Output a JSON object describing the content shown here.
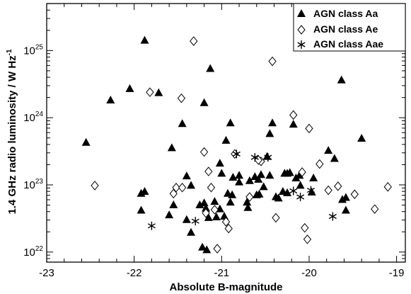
{
  "chart_data": {
    "type": "scatter",
    "xlabel": "Absolute B-magnitude",
    "ylabel": "1.4 GHz radio luminosity / W Hz",
    "ylabel_superscript": "-1",
    "xlim": [
      -23,
      -18.9
    ],
    "ylim_log10": [
      21.85,
      25.7
    ],
    "y_scale": "log",
    "x_ticks": [
      -23,
      -22,
      -21,
      -20,
      -19
    ],
    "y_ticks": [
      {
        "value": 22,
        "mantissa": "10",
        "exponent": "22"
      },
      {
        "value": 23,
        "mantissa": "10",
        "exponent": "23"
      },
      {
        "value": 24,
        "mantissa": "10",
        "exponent": "24"
      },
      {
        "value": 25,
        "mantissa": "10",
        "exponent": "25"
      }
    ],
    "legend_position": "top-right",
    "grid": false,
    "series": [
      {
        "name": "AGN class Aa",
        "marker": "filled-triangle",
        "points": [
          [
            -22.55,
            23.63
          ],
          [
            -22.27,
            24.26
          ],
          [
            -22.05,
            24.43
          ],
          [
            -21.88,
            25.15
          ],
          [
            -21.72,
            24.37
          ],
          [
            -21.92,
            22.87
          ],
          [
            -21.88,
            22.9
          ],
          [
            -21.92,
            22.62
          ],
          [
            -21.57,
            23.55
          ],
          [
            -21.45,
            23.91
          ],
          [
            -21.4,
            23.13
          ],
          [
            -21.4,
            22.48
          ],
          [
            -21.35,
            22.99
          ],
          [
            -21.35,
            22.29
          ],
          [
            -21.18,
            22.65
          ],
          [
            -21.2,
            22.73
          ],
          [
            -21.25,
            22.7
          ],
          [
            -21.2,
            24.22
          ],
          [
            -21.13,
            24.73
          ],
          [
            -21.15,
            22.51
          ],
          [
            -21.08,
            22.75
          ],
          [
            -21.02,
            23.32
          ],
          [
            -20.95,
            23.66
          ],
          [
            -21.02,
            22.64
          ],
          [
            -20.93,
            22.87
          ],
          [
            -20.9,
            22.74
          ],
          [
            -20.87,
            23.11
          ],
          [
            -20.8,
            23.14
          ],
          [
            -20.8,
            23.04
          ],
          [
            -20.71,
            22.74
          ],
          [
            -20.68,
            23.06
          ],
          [
            -20.62,
            23.12
          ],
          [
            -20.58,
            23.08
          ],
          [
            -20.55,
            23.15
          ],
          [
            -20.48,
            23.42
          ],
          [
            -20.45,
            23.76
          ],
          [
            -20.42,
            23.92
          ],
          [
            -20.38,
            22.82
          ],
          [
            -20.28,
            23.17
          ],
          [
            -20.25,
            22.88
          ],
          [
            -20.25,
            23.17
          ],
          [
            -20.18,
            23.9
          ],
          [
            -20.11,
            23.14
          ],
          [
            -20.1,
            22.99
          ],
          [
            -19.95,
            23.1
          ],
          [
            -19.78,
            23.51
          ],
          [
            -19.71,
            23.39
          ],
          [
            -19.63,
            24.56
          ],
          [
            -19.58,
            22.81
          ],
          [
            -19.58,
            22.62
          ],
          [
            -19.4,
            23.69
          ],
          [
            -21.22,
            22.07
          ],
          [
            -21.17,
            22.03
          ],
          [
            -21.06,
            22.52
          ],
          [
            -20.97,
            22.53
          ],
          [
            -20.88,
            22.85
          ],
          [
            -20.7,
            22.66
          ],
          [
            -20.57,
            22.86
          ],
          [
            -20.45,
            23.14
          ],
          [
            -20.3,
            22.9
          ],
          [
            -20.22,
            23.18
          ],
          [
            -19.97,
            22.89
          ],
          [
            -21.55,
            22.7
          ],
          [
            -21.6,
            22.55
          ],
          [
            -20.9,
            23.92
          ],
          [
            -20.52,
            22.97
          ],
          [
            -21.0,
            23.17
          ],
          [
            -20.6,
            22.85
          ],
          [
            -20.35,
            22.8
          ],
          [
            -19.62,
            22.78
          ],
          [
            -20.15,
            23.1
          ]
        ]
      },
      {
        "name": "AGN class Ae",
        "marker": "open-diamond",
        "points": [
          [
            -22.45,
            22.99
          ],
          [
            -21.82,
            24.38
          ],
          [
            -21.52,
            22.96
          ],
          [
            -21.55,
            22.87
          ],
          [
            -21.46,
            24.29
          ],
          [
            -21.32,
            25.14
          ],
          [
            -21.2,
            23.49
          ],
          [
            -21.15,
            23.2
          ],
          [
            -21.12,
            22.96
          ],
          [
            -21.08,
            22.63
          ],
          [
            -21.05,
            22.05
          ],
          [
            -20.92,
            22.35
          ],
          [
            -20.85,
            23.46
          ],
          [
            -20.68,
            22.82
          ],
          [
            -20.55,
            23.35
          ],
          [
            -20.42,
            24.84
          ],
          [
            -20.38,
            22.51
          ],
          [
            -20.18,
            24.04
          ],
          [
            -20.08,
            23.19
          ],
          [
            -20.05,
            22.36
          ],
          [
            -20.02,
            22.19
          ],
          [
            -20.0,
            23.84
          ],
          [
            -19.88,
            23.31
          ],
          [
            -19.78,
            22.92
          ],
          [
            -19.67,
            22.98
          ],
          [
            -19.48,
            22.86
          ],
          [
            -19.25,
            22.64
          ],
          [
            -19.1,
            22.97
          ],
          [
            -20.58,
            23.37
          ],
          [
            -21.45,
            22.96
          ],
          [
            -21.18,
            22.58
          ],
          [
            -20.95,
            22.45
          ]
        ]
      },
      {
        "name": "AGN class Aae",
        "marker": "asterisk",
        "points": [
          [
            -21.8,
            22.39
          ],
          [
            -21.3,
            22.46
          ],
          [
            -20.83,
            23.46
          ],
          [
            -20.62,
            23.41
          ],
          [
            -20.47,
            23.41
          ],
          [
            -20.18,
            22.91
          ],
          [
            -20.1,
            22.82
          ],
          [
            -19.98,
            22.92
          ],
          [
            -19.73,
            22.53
          ]
        ]
      }
    ]
  }
}
